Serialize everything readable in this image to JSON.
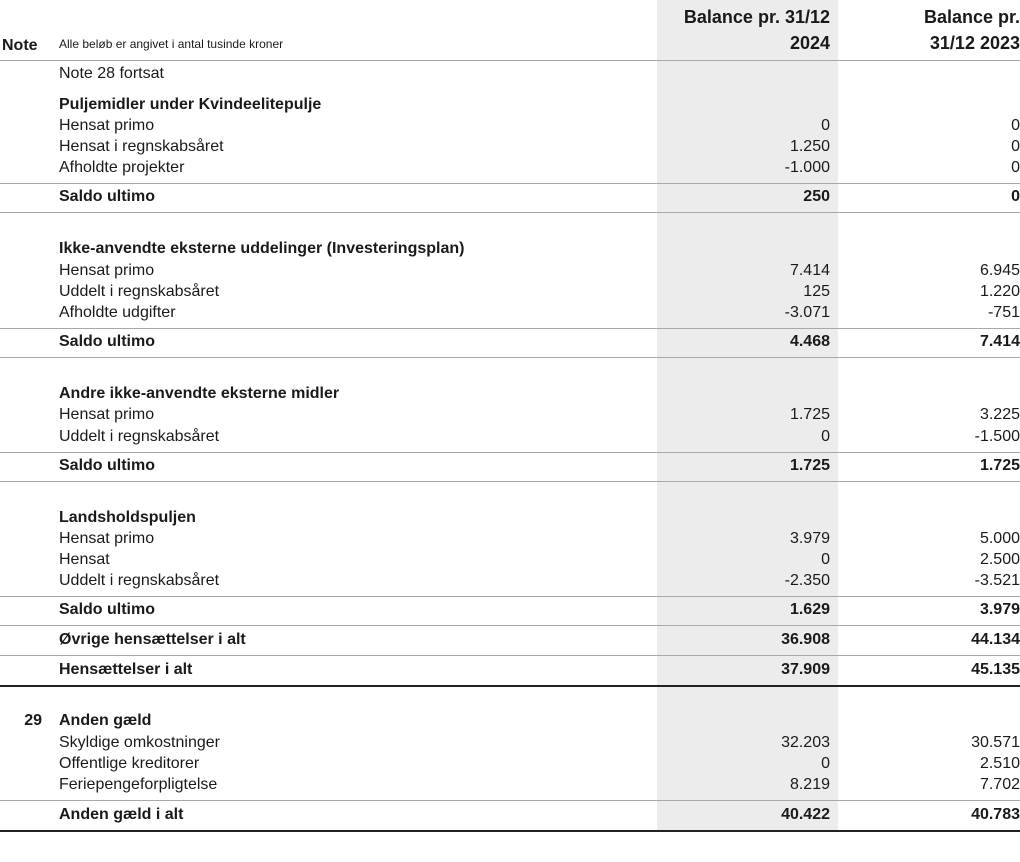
{
  "header": {
    "note": "Note",
    "subtitle": "Alle beløb er angivet i antal tusinde kroner",
    "col1": [
      "Balance pr. 31/12",
      "2024"
    ],
    "col2": [
      "Balance pr.",
      "31/12 2023"
    ]
  },
  "rows": [
    {
      "note": "",
      "label": "Note 28 fortsat",
      "v1": "",
      "v2": "",
      "bold": false
    },
    {
      "note": "",
      "label": "Puljemidler under Kvindeelitepulje",
      "v1": "",
      "v2": "",
      "bold": true
    },
    {
      "note": "",
      "label": "Hensat primo",
      "v1": "0",
      "v2": "0",
      "bold": false
    },
    {
      "note": "",
      "label": "Hensat i regnskabsåret",
      "v1": "1.250",
      "v2": "0",
      "bold": false
    },
    {
      "note": "",
      "label": "Afholdte projekter",
      "v1": "-1.000",
      "v2": "0",
      "bold": false,
      "line": "gray"
    },
    {
      "note": "",
      "label": "Saldo ultimo",
      "v1": "250",
      "v2": "0",
      "bold": true,
      "line": "gray"
    },
    {
      "note": "",
      "label": "Ikke-anvendte eksterne uddelinger (Investeringsplan)",
      "v1": "",
      "v2": "",
      "bold": true
    },
    {
      "note": "",
      "label": "Hensat primo",
      "v1": "7.414",
      "v2": "6.945",
      "bold": false
    },
    {
      "note": "",
      "label": "Uddelt i regnskabsåret",
      "v1": "125",
      "v2": "1.220",
      "bold": false
    },
    {
      "note": "",
      "label": "Afholdte udgifter",
      "v1": "-3.071",
      "v2": "-751",
      "bold": false,
      "line": "gray"
    },
    {
      "note": "",
      "label": "Saldo ultimo",
      "v1": "4.468",
      "v2": "7.414",
      "bold": true,
      "line": "gray"
    },
    {
      "note": "",
      "label": "Andre ikke-anvendte eksterne midler",
      "v1": "",
      "v2": "",
      "bold": true
    },
    {
      "note": "",
      "label": "Hensat primo",
      "v1": "1.725",
      "v2": "3.225",
      "bold": false
    },
    {
      "note": "",
      "label": "Uddelt i regnskabsåret",
      "v1": "0",
      "v2": "-1.500",
      "bold": false,
      "line": "gray"
    },
    {
      "note": "",
      "label": "Saldo ultimo",
      "v1": "1.725",
      "v2": "1.725",
      "bold": true,
      "line": "gray"
    },
    {
      "note": "",
      "label": "Landsholdspuljen",
      "v1": "",
      "v2": "",
      "bold": true
    },
    {
      "note": "",
      "label": "Hensat primo",
      "v1": "3.979",
      "v2": "5.000",
      "bold": false
    },
    {
      "note": "",
      "label": "Hensat",
      "v1": "0",
      "v2": "2.500",
      "bold": false
    },
    {
      "note": "",
      "label": "Uddelt i regnskabsåret",
      "v1": "-2.350",
      "v2": "-3.521",
      "bold": false,
      "line": "gray"
    },
    {
      "note": "",
      "label": "Saldo ultimo",
      "v1": "1.629",
      "v2": "3.979",
      "bold": true,
      "line": "gray"
    },
    {
      "note": "",
      "label": "Øvrige hensættelser i alt",
      "v1": "36.908",
      "v2": "44.134",
      "bold": true,
      "line": "gray"
    },
    {
      "note": "",
      "label": "Hensættelser i alt",
      "v1": "37.909",
      "v2": "45.135",
      "bold": true,
      "line": "black"
    },
    {
      "note": "29",
      "label": "Anden gæld",
      "v1": "",
      "v2": "",
      "bold": true
    },
    {
      "note": "",
      "label": "Skyldige omkostninger",
      "v1": "32.203",
      "v2": "30.571",
      "bold": false
    },
    {
      "note": "",
      "label": "Offentlige kreditorer",
      "v1": "0",
      "v2": "2.510",
      "bold": false
    },
    {
      "note": "",
      "label": "Feriepengeforpligtelse",
      "v1": "8.219",
      "v2": "7.702",
      "bold": false,
      "line": "gray"
    },
    {
      "note": "",
      "label": "Anden gæld i alt",
      "v1": "40.422",
      "v2": "40.783",
      "bold": true,
      "line": "black"
    }
  ]
}
